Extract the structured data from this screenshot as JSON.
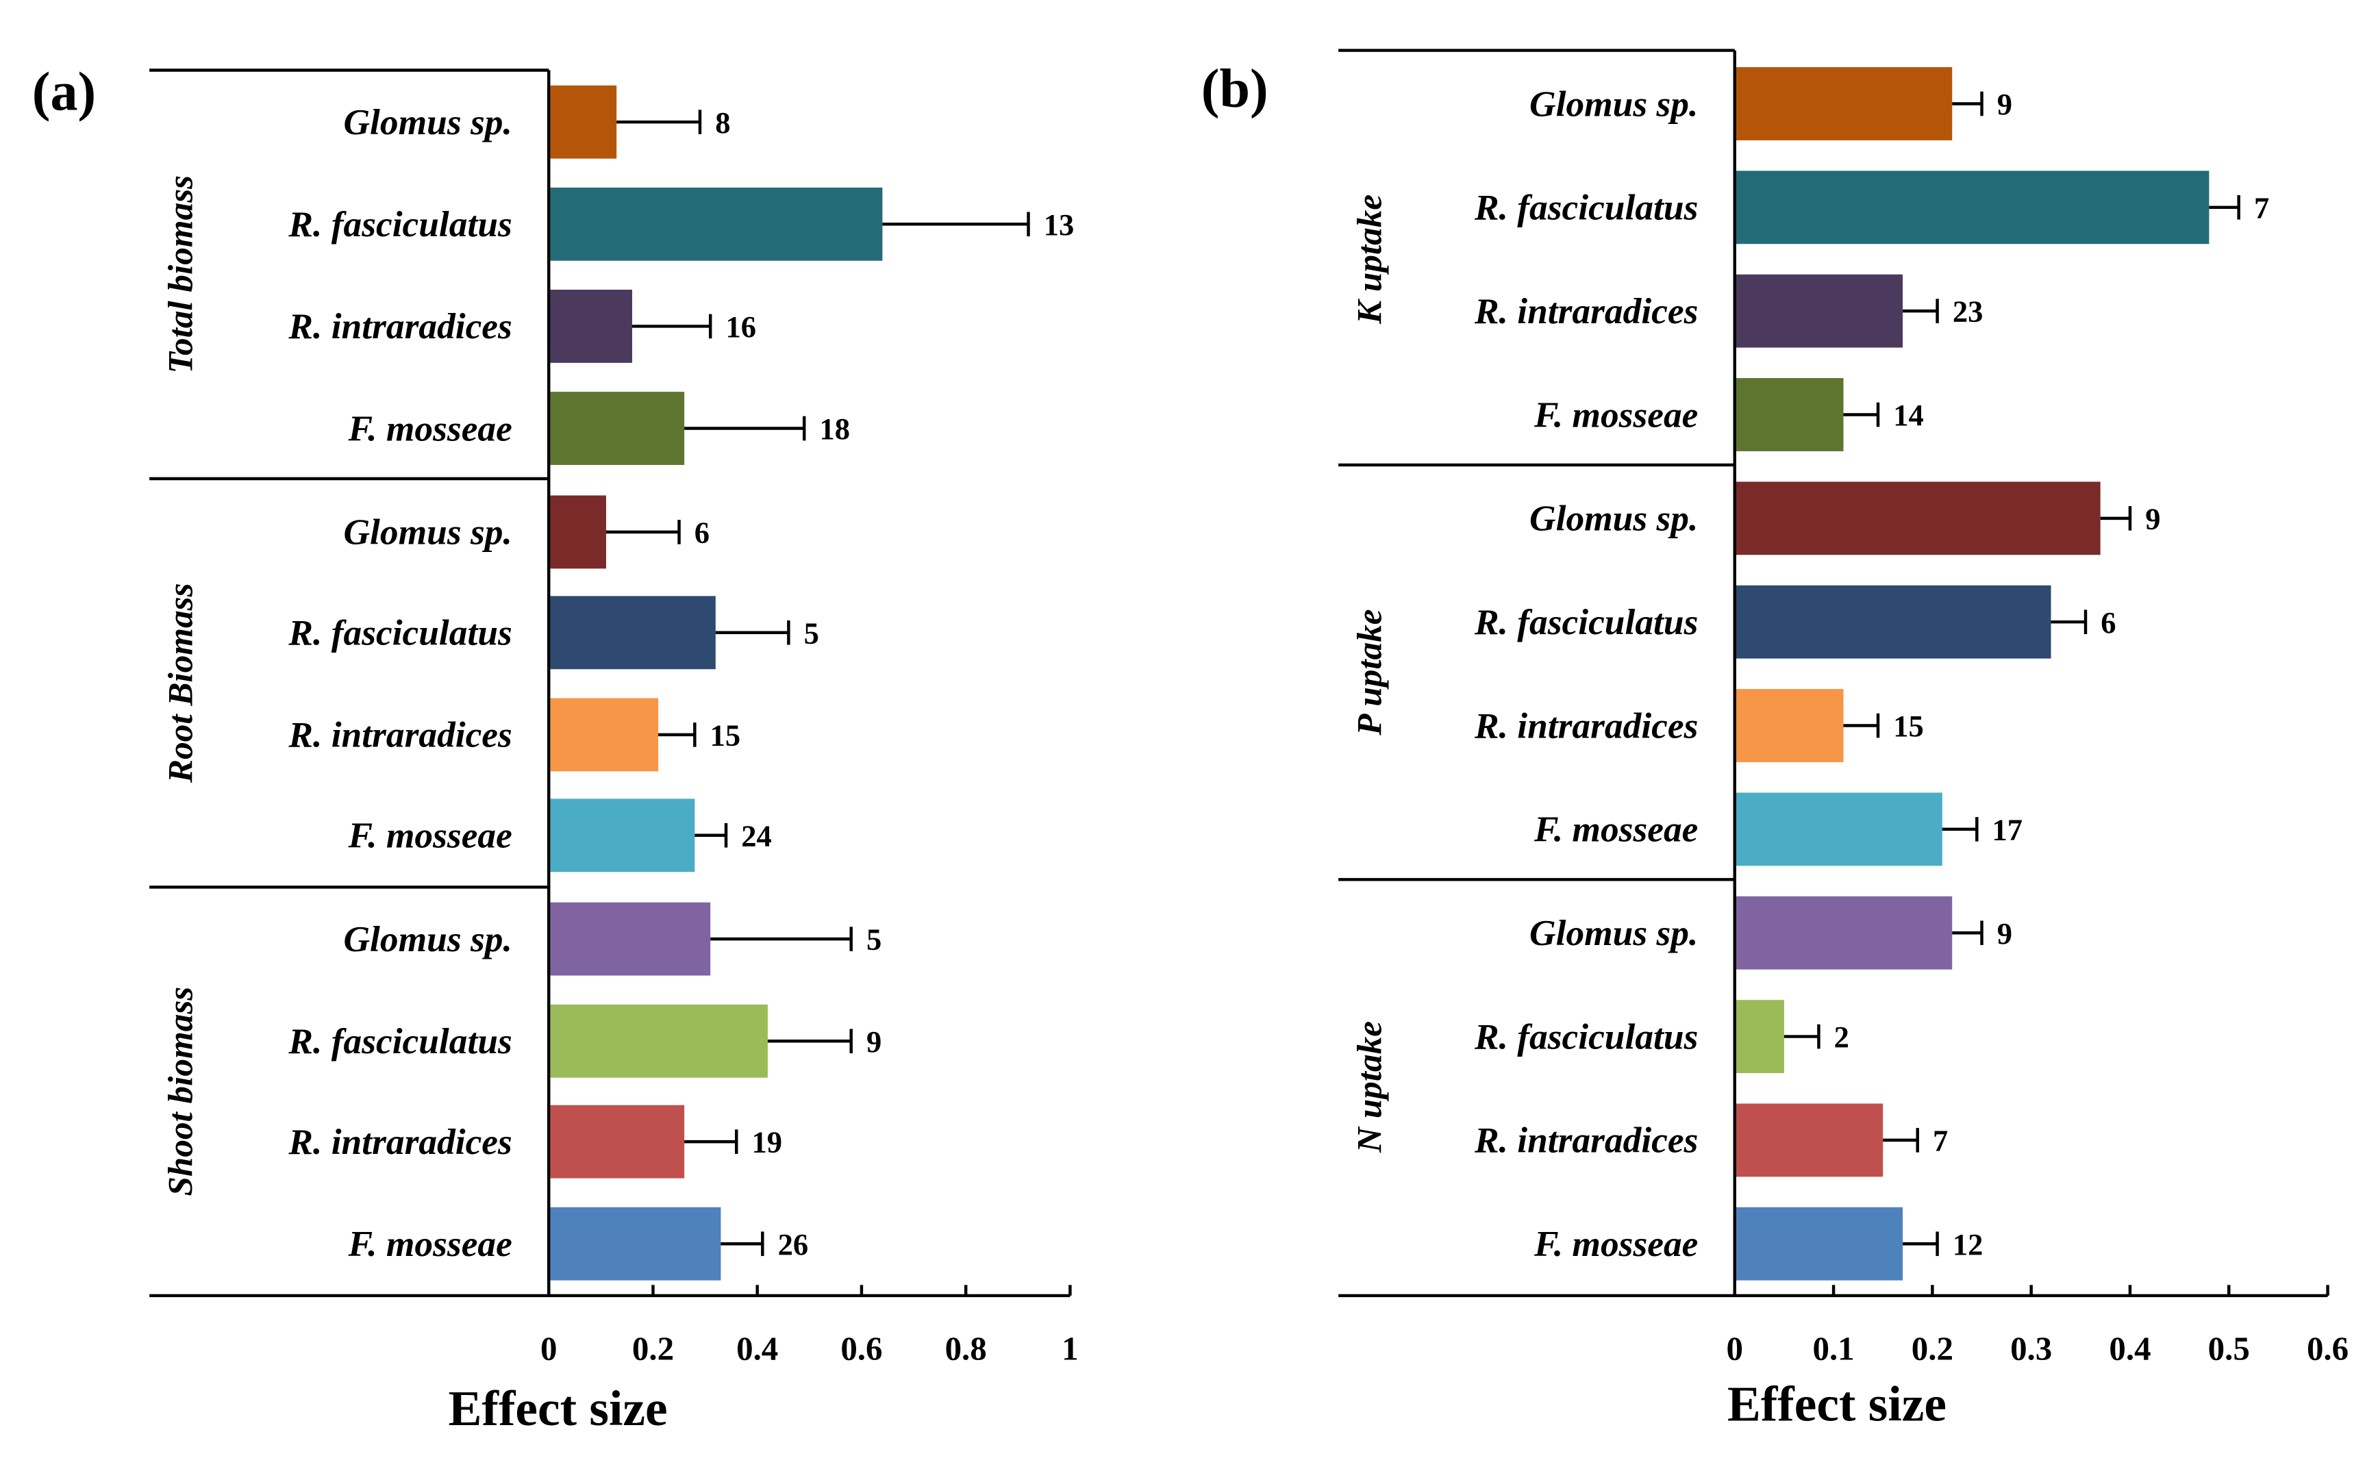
{
  "chart_data": [
    {
      "type": "bar",
      "orientation": "horizontal",
      "panel_label": "(a)",
      "xlabel": "Effect size",
      "xlim": [
        0,
        1
      ],
      "xticks": [
        "0",
        "0.2",
        "0.4",
        "0.6",
        "0.8",
        "1"
      ],
      "xtick_values": [
        0,
        0.2,
        0.4,
        0.6,
        0.8,
        1
      ],
      "groups": [
        {
          "name": "Total biomass",
          "categories": [
            "Glomus sp.",
            "R. fasciculatus",
            "R. intraradices",
            "F. mosseae"
          ],
          "values": [
            0.13,
            0.64,
            0.16,
            0.26
          ],
          "error_upper": [
            0.29,
            0.92,
            0.31,
            0.49
          ],
          "n": [
            "8",
            "13",
            "16",
            "18"
          ],
          "colors": [
            "#B5550A",
            "#246B78",
            "#4B3A5E",
            "#5E7530"
          ]
        },
        {
          "name": "Root Biomass",
          "categories": [
            "Glomus sp.",
            "R. fasciculatus",
            "R. intraradices",
            "F. mosseae"
          ],
          "values": [
            0.11,
            0.32,
            0.21,
            0.28
          ],
          "error_upper": [
            0.25,
            0.46,
            0.28,
            0.34
          ],
          "n": [
            "6",
            "5",
            "15",
            "24"
          ],
          "colors": [
            "#7B2A2A",
            "#2E4A70",
            "#F79646",
            "#4BACC6"
          ]
        },
        {
          "name": "Shoot biomass",
          "categories": [
            "Glomus sp.",
            "R. fasciculatus",
            "R. intraradices",
            "F. mosseae"
          ],
          "values": [
            0.31,
            0.42,
            0.26,
            0.33
          ],
          "error_upper": [
            0.58,
            0.58,
            0.36,
            0.41
          ],
          "n": [
            "5",
            "9",
            "19",
            "26"
          ],
          "colors": [
            "#8064A2",
            "#9BBB59",
            "#C0504D",
            "#4F81BD"
          ]
        }
      ]
    },
    {
      "type": "bar",
      "orientation": "horizontal",
      "panel_label": "(b)",
      "xlabel": "Effect size",
      "xlim": [
        0,
        0.6
      ],
      "xticks": [
        "0",
        "0.1",
        "0.2",
        "0.3",
        "0.4",
        "0.5",
        "0.6"
      ],
      "xtick_values": [
        0,
        0.1,
        0.2,
        0.3,
        0.4,
        0.5,
        0.6
      ],
      "groups": [
        {
          "name": "K uptake",
          "categories": [
            "Glomus sp.",
            "R. fasciculatus",
            "R. intraradices",
            "F. mosseae"
          ],
          "values": [
            0.22,
            0.48,
            0.17,
            0.11
          ],
          "error_upper": [
            0.25,
            0.51,
            0.205,
            0.145
          ],
          "n": [
            "9",
            "7",
            "23",
            "14"
          ],
          "colors": [
            "#B5550A",
            "#246B78",
            "#4B3A5E",
            "#5E7530"
          ]
        },
        {
          "name": "P uptake",
          "categories": [
            "Glomus sp.",
            "R. fasciculatus",
            "R. intraradices",
            "F. mosseae"
          ],
          "values": [
            0.37,
            0.32,
            0.11,
            0.21
          ],
          "error_upper": [
            0.4,
            0.355,
            0.145,
            0.245
          ],
          "n": [
            "9",
            "6",
            "15",
            "17"
          ],
          "colors": [
            "#7B2A2A",
            "#2E4A70",
            "#F79646",
            "#4BACC6"
          ]
        },
        {
          "name": "N uptake",
          "categories": [
            "Glomus sp.",
            "R. fasciculatus",
            "R. intraradices",
            "F. mosseae"
          ],
          "values": [
            0.22,
            0.05,
            0.15,
            0.17
          ],
          "error_upper": [
            0.25,
            0.085,
            0.185,
            0.205
          ],
          "n": [
            "9",
            "2",
            "7",
            "12"
          ],
          "colors": [
            "#8064A2",
            "#9BBB59",
            "#C0504D",
            "#4F81BD"
          ]
        }
      ]
    }
  ]
}
